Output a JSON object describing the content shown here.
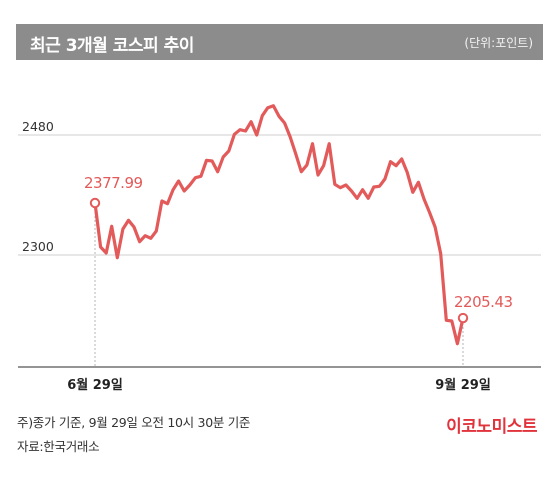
{
  "header": {
    "title": "최근 3개월 코스피 추이",
    "unit": "(단위:포인트)"
  },
  "chart_data": {
    "type": "line",
    "title": "최근 3개월 코스피 추이",
    "unit": "(단위:포인트)",
    "y_ticks": [
      2300,
      2480
    ],
    "y_tick_labels": [
      "2300",
      "2480"
    ],
    "x_tick_labels": [
      "6월 29일",
      "9월 29일"
    ],
    "ylim": [
      2130,
      2660
    ],
    "grid": "horizontal",
    "color": "#e35a5a",
    "series": [
      {
        "values": [
          2377.99,
          2312,
          2303,
          2343,
          2296,
          2339,
          2352,
          2342,
          2320,
          2329,
          2325,
          2336,
          2381,
          2377,
          2398,
          2411,
          2396,
          2405,
          2416,
          2418,
          2442,
          2441,
          2425,
          2447,
          2456,
          2481,
          2488,
          2486,
          2500,
          2480,
          2509,
          2521,
          2524,
          2508,
          2498,
          2477,
          2452,
          2425,
          2435,
          2467,
          2420,
          2434,
          2467,
          2406,
          2401,
          2405,
          2396,
          2385,
          2398,
          2385,
          2402,
          2403,
          2414,
          2440,
          2434,
          2444,
          2424,
          2394,
          2409,
          2384,
          2364,
          2342,
          2302,
          2202,
          2201,
          2167,
          2205.43
        ]
      }
    ],
    "annotations": [
      {
        "label": "2377.99",
        "index": 0,
        "value": 2377.99
      },
      {
        "label": "2205.43",
        "index": 66,
        "value": 2205.43
      }
    ]
  },
  "footer": {
    "note": "주)종가 기준, 9월 29일 오전 10시 30분 기준",
    "source": "자료:한국거래소",
    "brand": "이코노미스트"
  }
}
